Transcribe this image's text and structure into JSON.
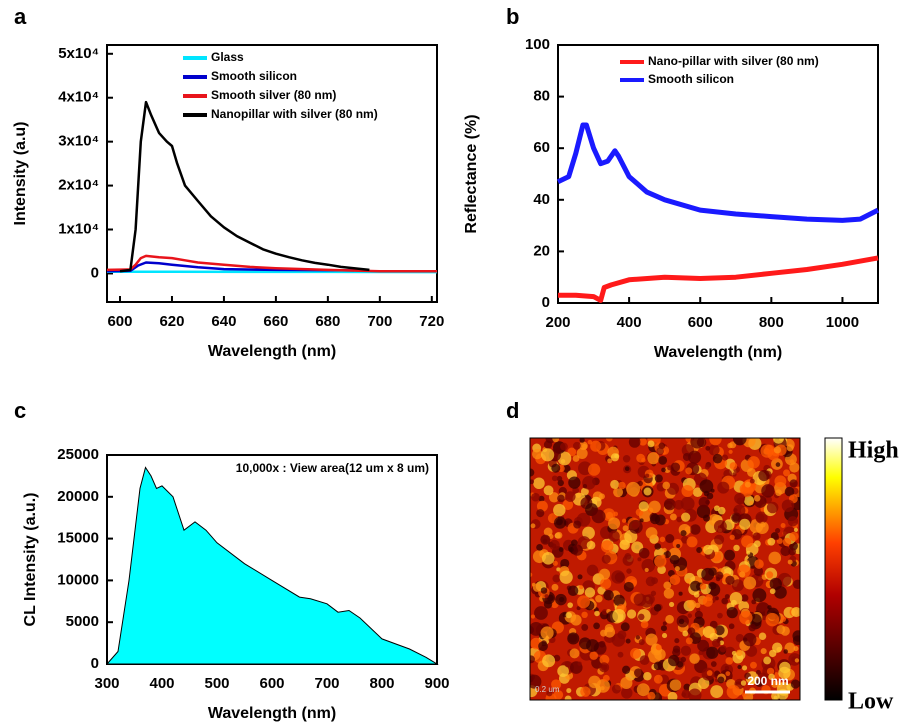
{
  "chart_data": [
    {
      "type": "line",
      "panel_label": "a",
      "xlabel": "Wavelength (nm)",
      "ylabel": "Intensity (a.u)",
      "xlim": [
        595,
        722
      ],
      "ylim": [
        -6500,
        52000
      ],
      "xticks": [
        600,
        620,
        640,
        660,
        680,
        700,
        720
      ],
      "yticks": [
        0,
        {
          "value": 10000,
          "label": "1x10⁴"
        },
        {
          "value": 20000,
          "label": "2x10⁴"
        },
        {
          "value": 30000,
          "label": "3x10⁴"
        },
        {
          "value": 40000,
          "label": "4x10⁴"
        },
        {
          "value": 50000,
          "label": "5x10⁴"
        }
      ],
      "series": [
        {
          "name": "Glass",
          "color": "#00e5ff",
          "x": [
            595,
            620,
            650,
            680,
            722
          ],
          "values": [
            400,
            400,
            350,
            350,
            300
          ]
        },
        {
          "name": "Smooth silicon",
          "color": "#0000cc",
          "x": [
            595,
            604,
            607,
            610,
            615,
            620,
            625,
            630,
            640,
            660,
            690
          ],
          "values": [
            500,
            600,
            1800,
            2500,
            2300,
            2000,
            1700,
            1400,
            1000,
            800,
            700
          ]
        },
        {
          "name": "Smooth silver (80 nm)",
          "color": "#e8141b",
          "x": [
            595,
            604,
            606,
            608,
            610,
            615,
            620,
            625,
            630,
            640,
            650,
            660,
            680,
            700,
            722
          ],
          "values": [
            800,
            900,
            2000,
            3500,
            4000,
            3700,
            3500,
            3000,
            2500,
            2000,
            1500,
            1200,
            800,
            500,
            500
          ]
        },
        {
          "name": "Nanopillar with silver (80 nm)",
          "color": "#000000",
          "x": [
            600,
            604,
            606,
            608,
            610,
            612,
            615,
            618,
            620,
            622,
            625,
            630,
            635,
            640,
            645,
            650,
            655,
            660,
            665,
            670,
            675,
            680,
            685,
            690,
            696
          ],
          "values": [
            500,
            800,
            10000,
            30000,
            39000,
            36000,
            32000,
            30000,
            29000,
            25000,
            20000,
            16500,
            13000,
            10500,
            8500,
            7000,
            5500,
            4500,
            3700,
            3000,
            2400,
            2000,
            1500,
            1200,
            800
          ]
        }
      ]
    },
    {
      "type": "line",
      "panel_label": "b",
      "xlabel": "Wavelength (nm)",
      "ylabel": "Reflectance (%)",
      "xlim": [
        200,
        1100
      ],
      "ylim": [
        0,
        100
      ],
      "xticks": [
        200,
        400,
        600,
        800,
        1000
      ],
      "yticks": [
        0,
        20,
        40,
        60,
        80,
        100
      ],
      "series": [
        {
          "name": "Nano-pillar with silver (80 nm)",
          "color": "#ff1a1a",
          "x": [
            200,
            250,
            300,
            320,
            330,
            350,
            400,
            500,
            600,
            700,
            800,
            900,
            1000,
            1100
          ],
          "values": [
            3,
            3,
            2.5,
            1,
            6,
            7,
            9,
            10,
            9.5,
            10,
            11.5,
            13,
            15,
            17.5
          ]
        },
        {
          "name": "Smooth silicon",
          "color": "#1a1aff",
          "x": [
            200,
            230,
            250,
            270,
            280,
            300,
            320,
            340,
            360,
            370,
            400,
            450,
            500,
            600,
            700,
            800,
            900,
            1000,
            1050,
            1100
          ],
          "values": [
            47,
            49,
            58,
            69,
            69,
            60,
            54,
            55,
            59,
            57,
            49,
            43,
            40,
            36,
            34.5,
            33.5,
            32.5,
            32,
            32.5,
            36
          ]
        }
      ]
    },
    {
      "type": "area",
      "panel_label": "c",
      "xlabel": "Wavelength (nm)",
      "ylabel": "CL Intensity (a.u.)",
      "annotation": "10,000x : View area(12 um x 8 um)",
      "xlim": [
        300,
        900
      ],
      "ylim": [
        0,
        25000
      ],
      "xticks": [
        300,
        400,
        500,
        600,
        700,
        800,
        900
      ],
      "yticks": [
        0,
        5000,
        10000,
        15000,
        20000,
        25000
      ],
      "color": "#00ffff",
      "x": [
        300,
        320,
        340,
        360,
        370,
        380,
        390,
        400,
        420,
        440,
        460,
        480,
        500,
        550,
        600,
        650,
        670,
        700,
        720,
        740,
        760,
        800,
        850,
        880,
        900
      ],
      "values": [
        0,
        1500,
        10000,
        21000,
        23500,
        22500,
        21000,
        21300,
        20000,
        16000,
        17000,
        16000,
        14500,
        12000,
        10000,
        8000,
        7800,
        7200,
        6200,
        6400,
        5500,
        3000,
        1800,
        800,
        0
      ]
    },
    {
      "type": "image",
      "panel_label": "d",
      "colorbar_labels": [
        "High",
        "Low"
      ],
      "scale_bar": "200 nm",
      "corner_text": "0.2 um"
    }
  ]
}
